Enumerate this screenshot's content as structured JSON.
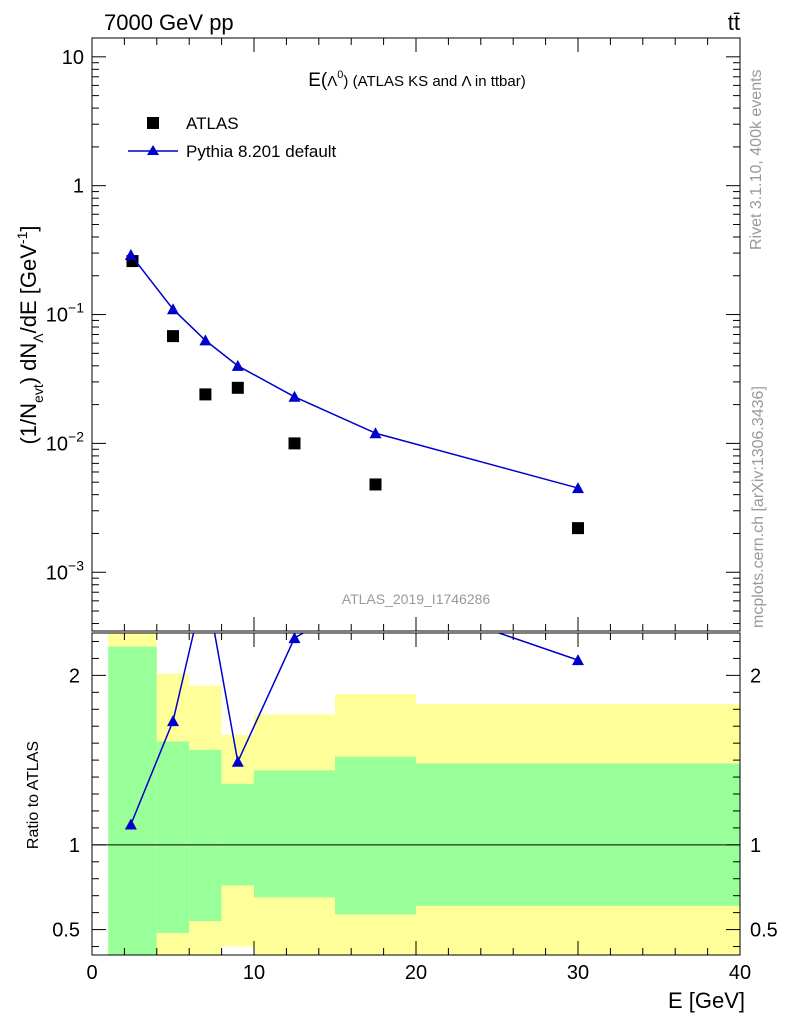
{
  "header": {
    "energy_label": "7000 GeV pp",
    "process_label": "tt̄",
    "rivet_label": "Rivet 3.1.10,  400k events",
    "mcplots_label": "mcplots.cern.ch [arXiv:1306.3436]",
    "analysis_label": "ATLAS_2019_I1746286"
  },
  "colors": {
    "data": "#000000",
    "mc": "#0000cc",
    "band_inner": "#99ff99",
    "band_outer": "#ffff99",
    "side_text": "#999999"
  },
  "chart_data": [
    {
      "type": "scatter",
      "title_main": "E(",
      "title_lambda": "Λ",
      "title_sup": "0",
      "title_rest": ") (ATLAS KS and Λ in ttbar)",
      "ylabel_parts": [
        "(1/N",
        "evt",
        ") dN",
        "Λ",
        "/dE [GeV",
        "-1",
        "]"
      ],
      "yscale": "log",
      "ylim": [
        0.00035,
        14
      ],
      "xlim": [
        0,
        40
      ],
      "yticks": [
        {
          "value": 10,
          "base": "10",
          "exp": ""
        },
        {
          "value": 1,
          "base": "1",
          "exp": ""
        },
        {
          "value": 0.1,
          "base": "10",
          "exp": "−1"
        },
        {
          "value": 0.01,
          "base": "10",
          "exp": "−2"
        },
        {
          "value": 0.001,
          "base": "10",
          "exp": "−3"
        }
      ],
      "legend": [
        {
          "label": "ATLAS",
          "marker": "square"
        },
        {
          "label": "Pythia 8.201 default",
          "marker": "triangle"
        }
      ],
      "legend_position": "top-left",
      "series": [
        {
          "name": "ATLAS",
          "marker": "square",
          "points": [
            {
              "x": 2.5,
              "y": 0.26
            },
            {
              "x": 5,
              "y": 0.068
            },
            {
              "x": 7,
              "y": 0.024
            },
            {
              "x": 9,
              "y": 0.027
            },
            {
              "x": 12.5,
              "y": 0.01
            },
            {
              "x": 17.5,
              "y": 0.0048
            },
            {
              "x": 30,
              "y": 0.0022
            }
          ]
        },
        {
          "name": "Pythia 8.201 default",
          "marker": "triangle",
          "points": [
            {
              "x": 2.4,
              "y": 0.29
            },
            {
              "x": 5,
              "y": 0.11
            },
            {
              "x": 7,
              "y": 0.063
            },
            {
              "x": 9,
              "y": 0.04
            },
            {
              "x": 12.5,
              "y": 0.023
            },
            {
              "x": 17.5,
              "y": 0.012
            },
            {
              "x": 30,
              "y": 0.0045
            }
          ]
        }
      ]
    },
    {
      "type": "line",
      "ylabel": "Ratio to ATLAS",
      "xlabel": "E [GeV]",
      "xlim": [
        0,
        40
      ],
      "ylim": [
        0.35,
        2.25
      ],
      "xticks": [
        0,
        10,
        20,
        30,
        40
      ],
      "yticks": [
        {
          "value": 0.5,
          "label": "0.5"
        },
        {
          "value": 1,
          "label": "1"
        },
        {
          "value": 2,
          "label": "2"
        }
      ],
      "reference_line": 1,
      "bands": [
        {
          "x0": 1,
          "x1": 4,
          "inner_lo": 0.35,
          "inner_hi": 2.17,
          "outer_lo": 0.35,
          "outer_hi": 2.3
        },
        {
          "x0": 4,
          "x1": 6,
          "inner_lo": 0.48,
          "inner_hi": 1.61,
          "outer_lo": 0.35,
          "outer_hi": 2.01
        },
        {
          "x0": 6,
          "x1": 8,
          "inner_lo": 0.55,
          "inner_hi": 1.56,
          "outer_lo": 0.35,
          "outer_hi": 1.94
        },
        {
          "x0": 8,
          "x1": 10,
          "inner_lo": 0.76,
          "inner_hi": 1.36,
          "outer_lo": 0.4,
          "outer_hi": 1.65
        },
        {
          "x0": 10,
          "x1": 15,
          "inner_lo": 0.69,
          "inner_hi": 1.44,
          "outer_lo": 0.35,
          "outer_hi": 1.77
        },
        {
          "x0": 15,
          "x1": 20,
          "inner_lo": 0.59,
          "inner_hi": 1.52,
          "outer_lo": 0.35,
          "outer_hi": 1.89
        },
        {
          "x0": 20,
          "x1": 40,
          "inner_lo": 0.64,
          "inner_hi": 1.48,
          "outer_lo": 0.35,
          "outer_hi": 1.83
        }
      ],
      "series": [
        {
          "name": "Pythia 8.201 default",
          "points": [
            {
              "x": 2.4,
              "y": 1.12
            },
            {
              "x": 5,
              "y": 1.73
            },
            {
              "x": 7,
              "y": 2.55
            },
            {
              "x": 9,
              "y": 1.49
            },
            {
              "x": 12.5,
              "y": 2.22
            },
            {
              "x": 17.5,
              "y": 2.5
            },
            {
              "x": 30,
              "y": 2.09
            }
          ]
        }
      ]
    }
  ]
}
